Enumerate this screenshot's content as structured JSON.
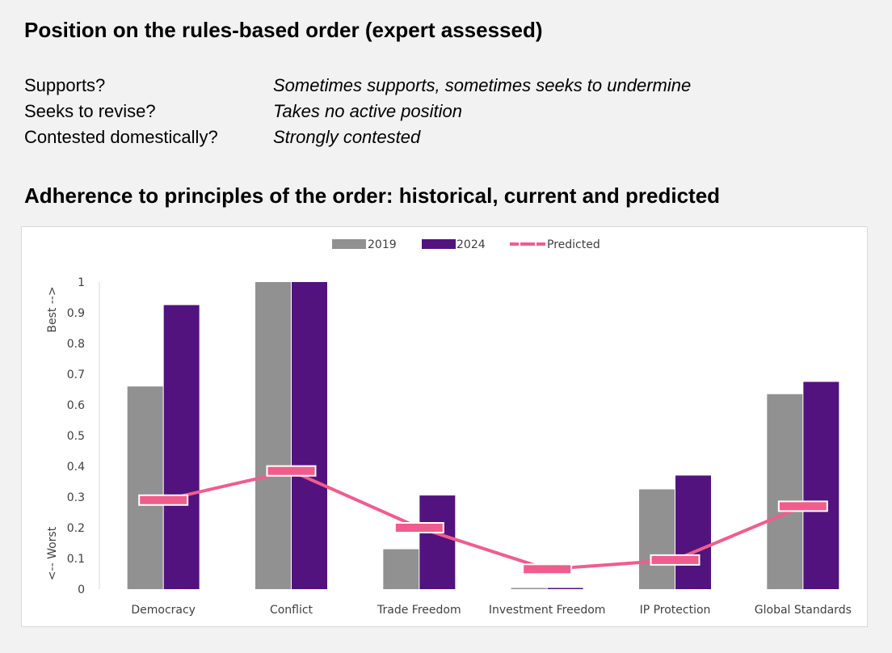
{
  "position_section": {
    "title": "Position on the rules-based order (expert assessed)",
    "rows": [
      {
        "label": "Supports?",
        "value": "Sometimes supports, sometimes seeks to undermine"
      },
      {
        "label": "Seeks to revise?",
        "value": "Takes no active position"
      },
      {
        "label": "Contested domestically?",
        "value": "Strongly contested"
      }
    ]
  },
  "adherence_section": {
    "title": "Adherence to principles of the order: historical, current and predicted"
  },
  "chart_data": {
    "type": "bar",
    "categories": [
      "Democracy",
      "Conflict",
      "Trade Freedom",
      "Investment Freedom",
      "IP Protection",
      "Global Standards"
    ],
    "series": [
      {
        "name": "2019",
        "type": "bar",
        "color": "#919191",
        "values": [
          0.66,
          1.0,
          0.13,
          0.0,
          0.325,
          0.635
        ]
      },
      {
        "name": "2024",
        "type": "bar",
        "color": "#52137f",
        "values": [
          0.925,
          1.0,
          0.305,
          0.0,
          0.37,
          0.675
        ]
      },
      {
        "name": "Predicted",
        "type": "line",
        "color": "#f25c8c",
        "values": [
          0.29,
          0.385,
          0.2,
          0.065,
          0.095,
          0.27
        ]
      }
    ],
    "ylim": [
      0,
      1
    ],
    "yticks": [
      "0",
      "0.1",
      "0.2",
      "0.3",
      "0.4",
      "0.5",
      "0.6",
      "0.7",
      "0.8",
      "0.9",
      "1"
    ],
    "ylabel_top": "Best -->",
    "ylabel_bottom": "<-- Worst",
    "legend_position": "top-center",
    "grid": false
  }
}
